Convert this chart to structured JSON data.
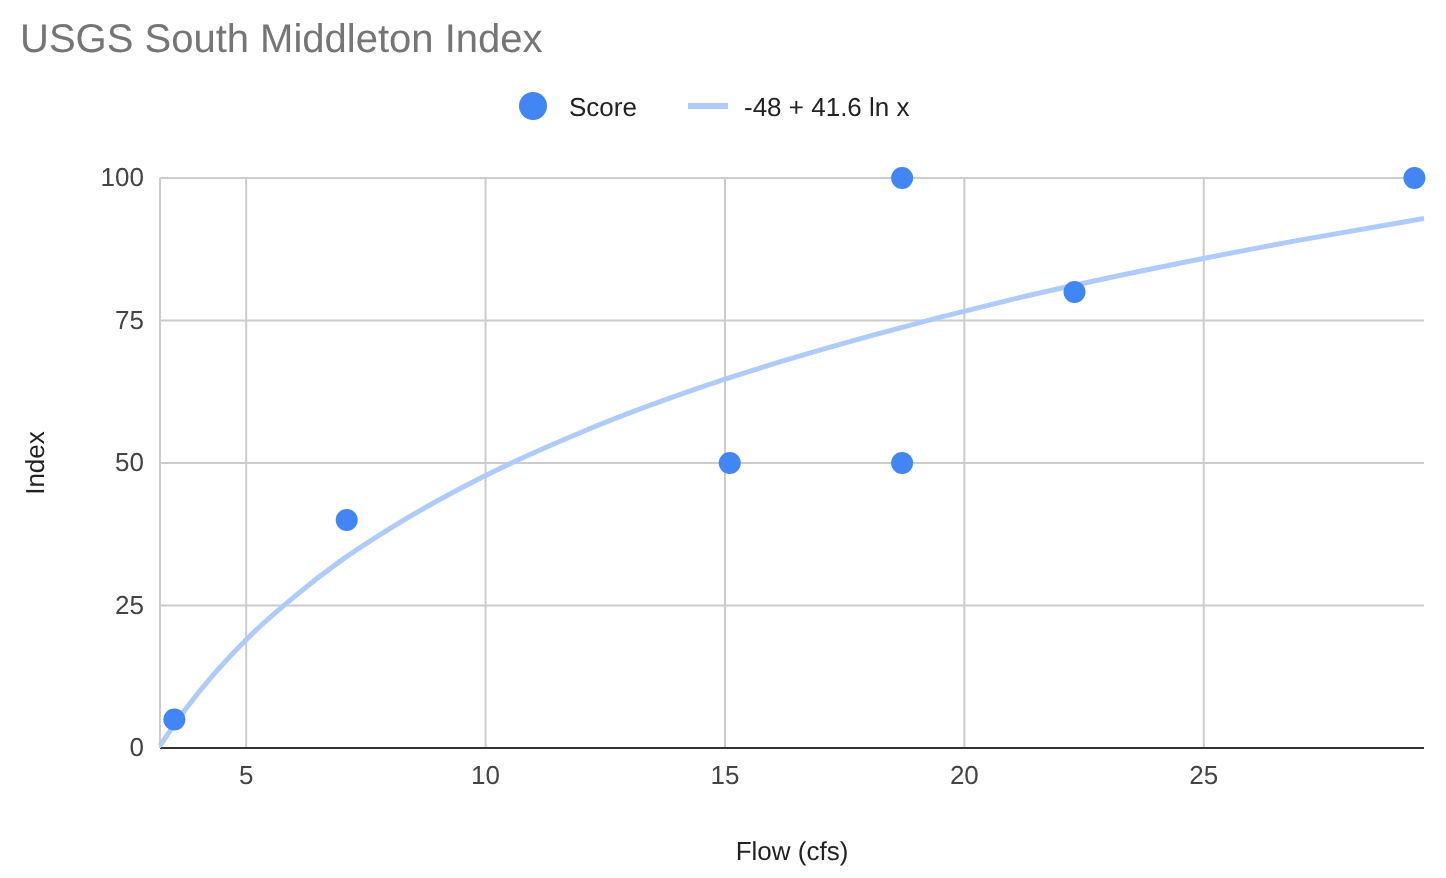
{
  "chart_data": {
    "type": "scatter",
    "title": "USGS South Middleton Index",
    "xlabel": "Flow (cfs)",
    "ylabel": "Index",
    "xlim": [
      3.2,
      29.6
    ],
    "xticks": [
      5,
      10,
      15,
      20,
      25
    ],
    "ylim": [
      0,
      100
    ],
    "yticks": [
      0,
      25,
      50,
      75,
      100
    ],
    "grid": true,
    "legend": "top",
    "series": [
      {
        "name": "Score",
        "marker": "circle",
        "color": "#4285f4",
        "x": [
          3.5,
          7.1,
          15.1,
          18.7,
          18.7,
          22.3,
          29.4
        ],
        "values": [
          5,
          40,
          50,
          100,
          50,
          80,
          100
        ]
      },
      {
        "name": "-48 + 41.6 ln x",
        "type": "line",
        "color": "#aecbfa",
        "x": [
          3.2,
          3.5,
          4,
          5,
          6,
          7,
          8,
          10,
          12,
          15,
          18,
          21,
          24,
          27,
          29.6
        ],
        "values": [
          0.4,
          4.1,
          9.7,
          19,
          26.5,
          33,
          38.5,
          47.8,
          55.4,
          64.7,
          72.2,
          78.7,
          84.2,
          89.1,
          92.9
        ]
      }
    ]
  }
}
